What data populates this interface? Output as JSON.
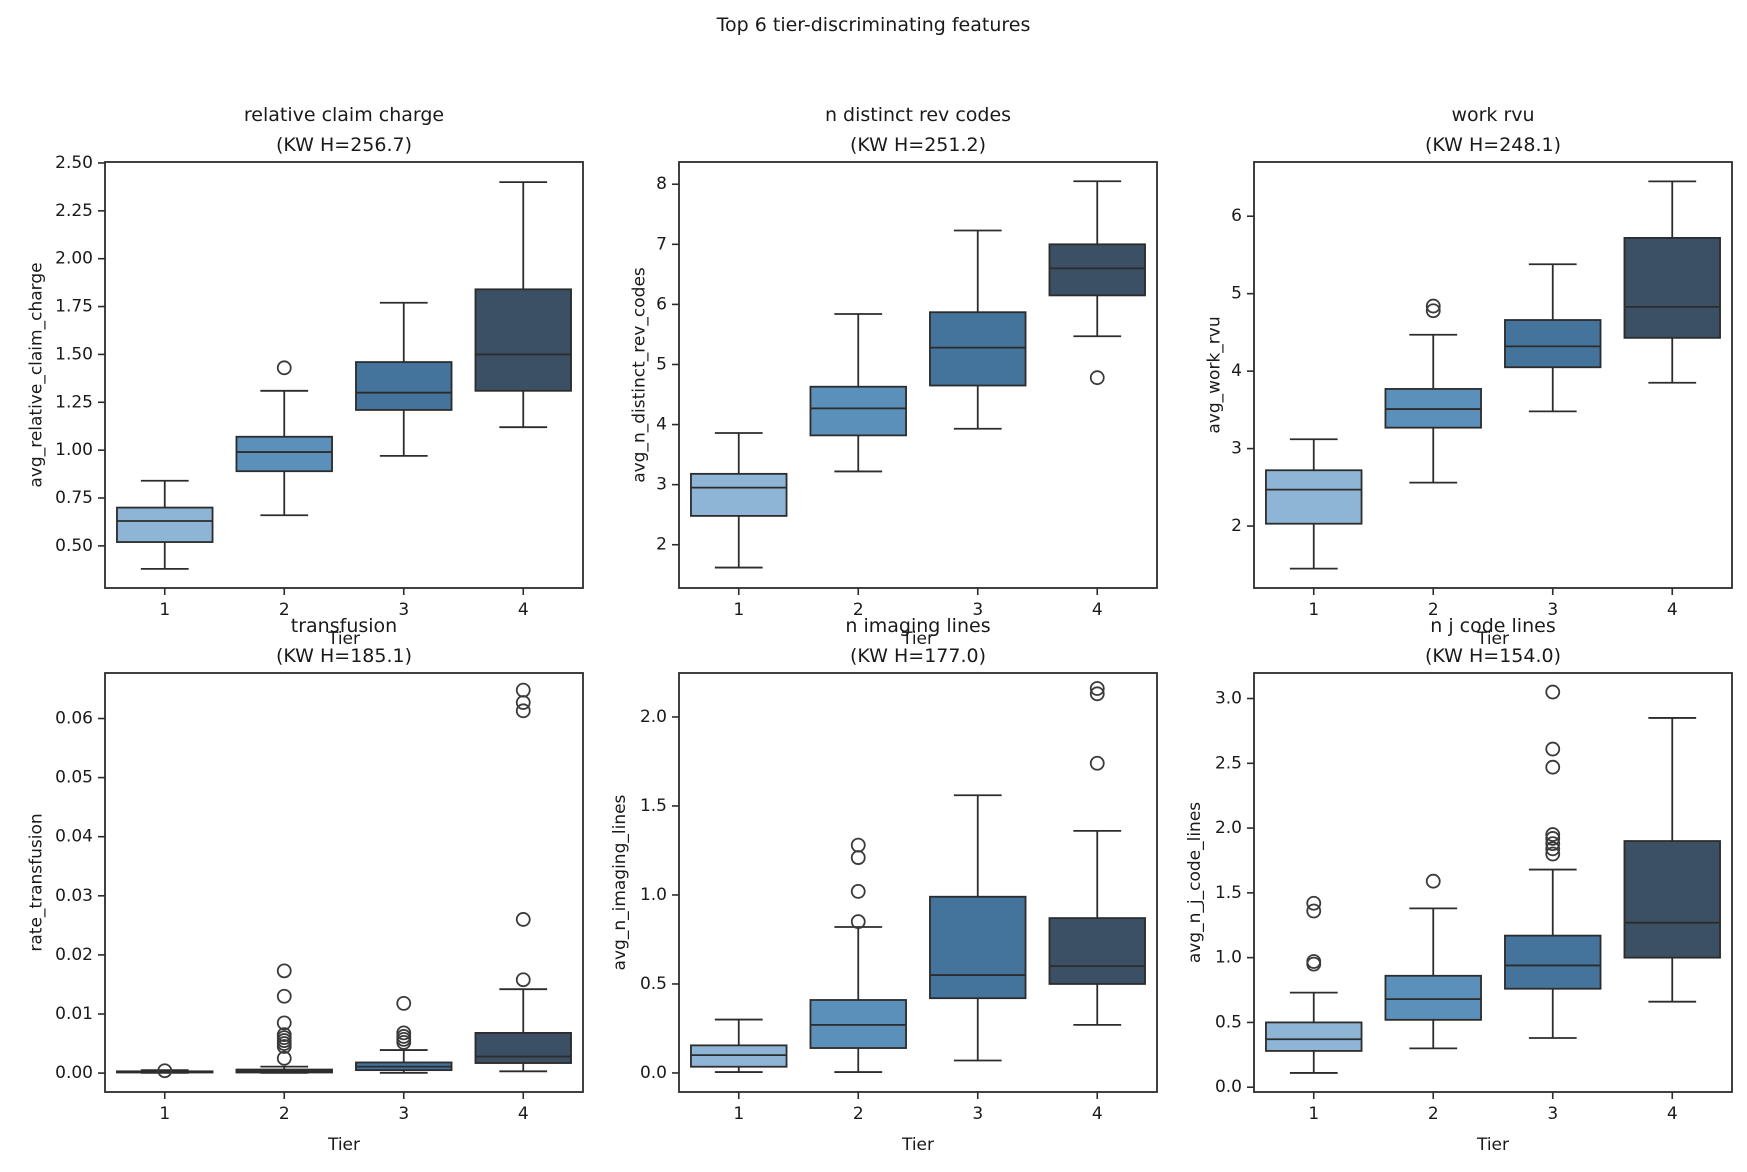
{
  "figure": {
    "title": "Top 6 tier-discriminating features",
    "background": "#ffffff",
    "text_color": "#1a1a1a",
    "line_color": "#2c2c2c",
    "tier_colors": [
      "#8fb5d6",
      "#5a90ba",
      "#44739b",
      "#3b5065"
    ]
  },
  "chart_data": [
    {
      "type": "box",
      "title": "relative claim charge",
      "subtitle": "(KW H=256.7)",
      "xlabel": "Tier",
      "ylabel": "avg_relative_claim_charge",
      "categories": [
        "1",
        "2",
        "3",
        "4"
      ],
      "ylim": [
        0.28,
        2.505
      ],
      "yticks": [
        0.5,
        0.75,
        1.0,
        1.25,
        1.5,
        1.75,
        2.0,
        2.25,
        2.5
      ],
      "ytick_labels": [
        "0.50",
        "0.75",
        "1.00",
        "1.25",
        "1.50",
        "1.75",
        "2.00",
        "2.25",
        "2.50"
      ],
      "grid": false,
      "legend": null,
      "boxes": [
        {
          "tier": "1",
          "whislo": 0.38,
          "q1": 0.52,
          "med": 0.63,
          "q3": 0.7,
          "whishi": 0.84,
          "outliers": []
        },
        {
          "tier": "2",
          "whislo": 0.66,
          "q1": 0.89,
          "med": 0.99,
          "q3": 1.07,
          "whishi": 1.31,
          "outliers": [
            1.43
          ]
        },
        {
          "tier": "3",
          "whislo": 0.97,
          "q1": 1.21,
          "med": 1.3,
          "q3": 1.46,
          "whishi": 1.77,
          "outliers": []
        },
        {
          "tier": "4",
          "whislo": 1.12,
          "q1": 1.31,
          "med": 1.5,
          "q3": 1.84,
          "whishi": 2.4,
          "outliers": []
        }
      ]
    },
    {
      "type": "box",
      "title": "n distinct rev codes",
      "subtitle": "(KW H=251.2)",
      "xlabel": "Tier",
      "ylabel": "avg_n_distinct_rev_codes",
      "categories": [
        "1",
        "2",
        "3",
        "4"
      ],
      "ylim": [
        1.28,
        8.37
      ],
      "yticks": [
        2,
        3,
        4,
        5,
        6,
        7,
        8
      ],
      "ytick_labels": [
        "2",
        "3",
        "4",
        "5",
        "6",
        "7",
        "8"
      ],
      "grid": false,
      "legend": null,
      "boxes": [
        {
          "tier": "1",
          "whislo": 1.62,
          "q1": 2.48,
          "med": 2.95,
          "q3": 3.18,
          "whishi": 3.86,
          "outliers": []
        },
        {
          "tier": "2",
          "whislo": 3.22,
          "q1": 3.82,
          "med": 4.27,
          "q3": 4.63,
          "whishi": 5.84,
          "outliers": []
        },
        {
          "tier": "3",
          "whislo": 3.93,
          "q1": 4.65,
          "med": 5.28,
          "q3": 5.87,
          "whishi": 7.23,
          "outliers": []
        },
        {
          "tier": "4",
          "whislo": 5.47,
          "q1": 6.15,
          "med": 6.6,
          "q3": 7.0,
          "whishi": 8.05,
          "outliers": [
            4.78
          ]
        }
      ]
    },
    {
      "type": "box",
      "title": "work rvu",
      "subtitle": "(KW H=248.1)",
      "xlabel": "Tier",
      "ylabel": "avg_work_rvu",
      "categories": [
        "1",
        "2",
        "3",
        "4"
      ],
      "ylim": [
        1.2,
        6.7
      ],
      "yticks": [
        2,
        3,
        4,
        5,
        6
      ],
      "ytick_labels": [
        "2",
        "3",
        "4",
        "5",
        "6"
      ],
      "grid": false,
      "legend": null,
      "boxes": [
        {
          "tier": "1",
          "whislo": 1.45,
          "q1": 2.03,
          "med": 2.47,
          "q3": 2.72,
          "whishi": 3.12,
          "outliers": []
        },
        {
          "tier": "2",
          "whislo": 2.56,
          "q1": 3.27,
          "med": 3.51,
          "q3": 3.77,
          "whishi": 4.47,
          "outliers": [
            4.78,
            4.84
          ]
        },
        {
          "tier": "3",
          "whislo": 3.48,
          "q1": 4.05,
          "med": 4.32,
          "q3": 4.66,
          "whishi": 5.38,
          "outliers": []
        },
        {
          "tier": "4",
          "whislo": 3.85,
          "q1": 4.43,
          "med": 4.83,
          "q3": 5.72,
          "whishi": 6.45,
          "outliers": []
        }
      ]
    },
    {
      "type": "box",
      "title": "transfusion",
      "subtitle": "(KW H=185.1)",
      "xlabel": "Tier",
      "ylabel": "rate_transfusion",
      "categories": [
        "1",
        "2",
        "3",
        "4"
      ],
      "ylim": [
        -0.0032,
        0.0677
      ],
      "yticks": [
        0.0,
        0.01,
        0.02,
        0.03,
        0.04,
        0.05,
        0.06
      ],
      "ytick_labels": [
        "0.00",
        "0.01",
        "0.02",
        "0.03",
        "0.04",
        "0.05",
        "0.06"
      ],
      "grid": false,
      "legend": null,
      "boxes": [
        {
          "tier": "1",
          "whislo": 5e-05,
          "q1": 0.0001,
          "med": 0.0002,
          "q3": 0.0003,
          "whishi": 0.0005,
          "outliers": [
            0.0004
          ]
        },
        {
          "tier": "2",
          "whislo": 5e-05,
          "q1": 0.0001,
          "med": 0.0003,
          "q3": 0.0006,
          "whishi": 0.0011,
          "outliers": [
            0.0025,
            0.0045,
            0.005,
            0.0055,
            0.006,
            0.0065,
            0.0085,
            0.013,
            0.0173
          ]
        },
        {
          "tier": "3",
          "whislo": 5e-05,
          "q1": 0.0005,
          "med": 0.0011,
          "q3": 0.0018,
          "whishi": 0.0039,
          "outliers": [
            0.0052,
            0.0057,
            0.0062,
            0.0068,
            0.0118
          ]
        },
        {
          "tier": "4",
          "whislo": 0.0003,
          "q1": 0.0017,
          "med": 0.0028,
          "q3": 0.0068,
          "whishi": 0.0142,
          "outliers": [
            0.0158,
            0.026,
            0.0613,
            0.0627,
            0.0648
          ]
        }
      ]
    },
    {
      "type": "box",
      "title": "n imaging lines",
      "subtitle": "(KW H=177.0)",
      "xlabel": "Tier",
      "ylabel": "avg_n_imaging_lines",
      "categories": [
        "1",
        "2",
        "3",
        "4"
      ],
      "ylim": [
        -0.107,
        2.247
      ],
      "yticks": [
        0.0,
        0.5,
        1.0,
        1.5,
        2.0
      ],
      "ytick_labels": [
        "0.0",
        "0.5",
        "1.0",
        "1.5",
        "2.0"
      ],
      "grid": false,
      "legend": null,
      "boxes": [
        {
          "tier": "1",
          "whislo": 0.005,
          "q1": 0.035,
          "med": 0.1,
          "q3": 0.155,
          "whishi": 0.3,
          "outliers": []
        },
        {
          "tier": "2",
          "whislo": 0.005,
          "q1": 0.14,
          "med": 0.27,
          "q3": 0.41,
          "whishi": 0.82,
          "outliers": [
            0.85,
            1.02,
            1.21,
            1.28
          ]
        },
        {
          "tier": "3",
          "whislo": 0.07,
          "q1": 0.42,
          "med": 0.55,
          "q3": 0.99,
          "whishi": 1.56,
          "outliers": []
        },
        {
          "tier": "4",
          "whislo": 0.27,
          "q1": 0.5,
          "med": 0.6,
          "q3": 0.87,
          "whishi": 1.36,
          "outliers": [
            1.74,
            2.13,
            2.16
          ]
        }
      ]
    },
    {
      "type": "box",
      "title": "n j code lines",
      "subtitle": "(KW H=154.0)",
      "xlabel": "Tier",
      "ylabel": "avg_n_j_code_lines",
      "categories": [
        "1",
        "2",
        "3",
        "4"
      ],
      "ylim": [
        -0.037,
        3.197
      ],
      "yticks": [
        0.0,
        0.5,
        1.0,
        1.5,
        2.0,
        2.5,
        3.0
      ],
      "ytick_labels": [
        "0.0",
        "0.5",
        "1.0",
        "1.5",
        "2.0",
        "2.5",
        "3.0"
      ],
      "grid": false,
      "legend": null,
      "boxes": [
        {
          "tier": "1",
          "whislo": 0.11,
          "q1": 0.28,
          "med": 0.37,
          "q3": 0.5,
          "whishi": 0.73,
          "outliers": [
            0.95,
            0.97,
            1.36,
            1.42
          ]
        },
        {
          "tier": "2",
          "whislo": 0.3,
          "q1": 0.52,
          "med": 0.68,
          "q3": 0.86,
          "whishi": 1.38,
          "outliers": [
            1.59
          ]
        },
        {
          "tier": "3",
          "whislo": 0.38,
          "q1": 0.76,
          "med": 0.94,
          "q3": 1.17,
          "whishi": 1.68,
          "outliers": [
            1.8,
            1.84,
            1.88,
            1.92,
            1.95,
            2.47,
            2.61,
            3.05
          ]
        },
        {
          "tier": "4",
          "whislo": 0.66,
          "q1": 1.0,
          "med": 1.27,
          "q3": 1.9,
          "whishi": 2.85,
          "outliers": []
        }
      ]
    }
  ]
}
